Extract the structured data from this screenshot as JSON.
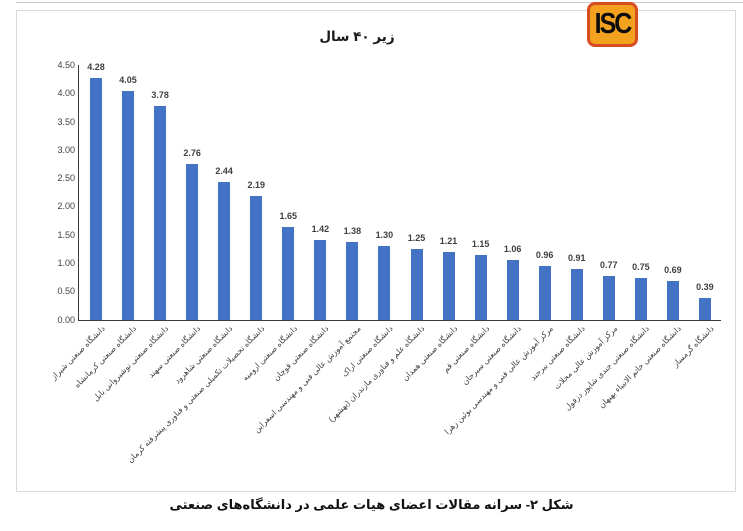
{
  "logo": {
    "text": "ISC",
    "bg_color": "#F2A21F",
    "border_color": "#D84E22",
    "text_color": "#0d0d0d"
  },
  "chart_data": {
    "type": "bar",
    "title": "زیر ۴۰ سال",
    "categories": [
      "دانشگاه صنعتی شیراز",
      "دانشگاه صنعتی کرمانشاه",
      "دانشگاه صنعتی نوشیروانی بابل",
      "دانشگاه صنعتی سهند",
      "دانشگاه صنعتی شاهرود",
      "دانشگاه تحصیلات تکمیلی صنعتی و فناوری پیشرفته کرمان",
      "دانشگاه صنعتی ارومیه",
      "دانشگاه صنعتی قوچان",
      "مجتمع آموزش عالی فنی و مهندسی اسفراین",
      "دانشگاه صنعتی اراک",
      "دانشگاه علم و فناوری مازندران (بهشهر)",
      "دانشگاه صنعتی همدان",
      "دانشگاه صنعتی قم",
      "دانشگاه صنعتی سیرجان",
      "مرکز آموزش عالی فنی و مهندسی بوئین زهرا",
      "دانشگاه صنعتی بیرجند",
      "مرکز آموزش عالی محلات",
      "دانشگاه صنعتی جندی شاپور دزفول",
      "دانشگاه صنعتی خاتم الانبیاء بهبهان",
      "دانشگاه گرمسار"
    ],
    "values": [
      4.28,
      4.05,
      3.78,
      2.76,
      2.44,
      2.19,
      1.65,
      1.42,
      1.38,
      1.3,
      1.25,
      1.21,
      1.15,
      1.06,
      0.96,
      0.91,
      0.77,
      0.75,
      0.69,
      0.39
    ],
    "value_labels": [
      "4.28",
      "4.05",
      "3.78",
      "2.76",
      "2.44",
      "2.19",
      "1.65",
      "1.42",
      "1.38",
      "1.30",
      "1.25",
      "1.21",
      "1.15",
      "1.06",
      "0.96",
      "0.91",
      "0.77",
      "0.75",
      "0.69",
      "0.39"
    ],
    "ytick_labels": [
      "0.00",
      "0.50",
      "1.00",
      "1.50",
      "2.00",
      "2.50",
      "3.00",
      "3.50",
      "4.00",
      "4.50"
    ],
    "xlabel": "",
    "ylabel": "",
    "ylim": [
      0,
      4.5
    ],
    "ytick_step": 0.5,
    "grid": false,
    "legend": false,
    "bar_color": "#4472C4"
  },
  "caption": "شکل ۲- سرانه مقالات اعضای هیات علمی در دانشگاه‌های صنعتی"
}
